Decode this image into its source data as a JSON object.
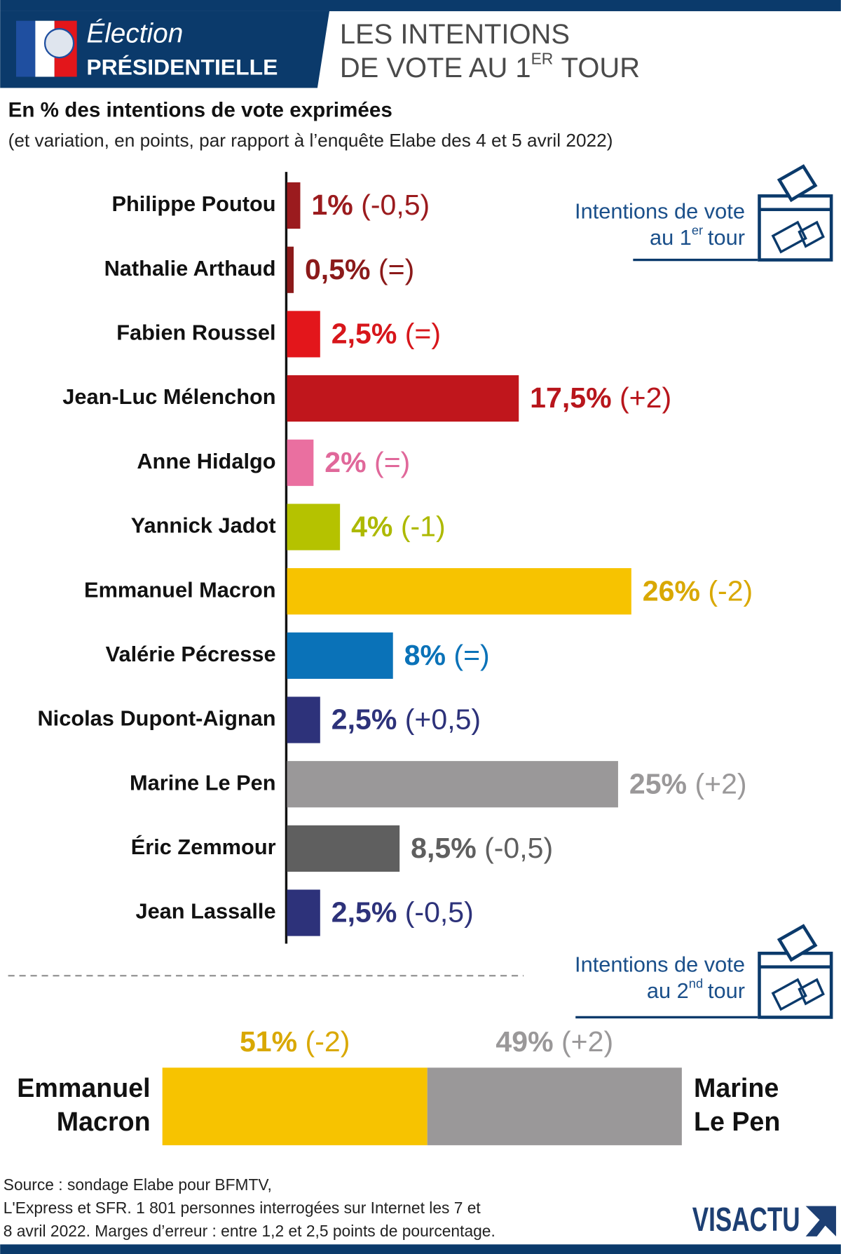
{
  "header": {
    "badge_line1": "Élection",
    "badge_line2": "PRÉSIDENTIELLE",
    "title_line1": "LES INTENTIONS",
    "title_line2": "DE VOTE AU 1",
    "title_sup": "ER",
    "title_line2_end": "TOUR"
  },
  "chart_data": [
    {
      "type": "hbar",
      "subtitle": "En % des intentions de vote exprimées",
      "note": "(et variation, en points, par rapport à l’enquête Elabe des 4 et 5 avril 2022)",
      "legend": {
        "line1": "Intentions de vote",
        "line2": "au 1",
        "sup": "er",
        "line2_end": "tour"
      },
      "categories": [
        "Philippe Poutou",
        "Nathalie Arthaud",
        "Fabien Roussel",
        "Jean-Luc Mélenchon",
        "Anne Hidalgo",
        "Yannick Jadot",
        "Emmanuel Macron",
        "Valérie Pécresse",
        "Nicolas Dupont-Aignan",
        "Marine Le Pen",
        "Éric Zemmour",
        "Jean Lassalle"
      ],
      "values": [
        1,
        0.5,
        2.5,
        17.5,
        2,
        4,
        26,
        8,
        2.5,
        25,
        8.5,
        2.5
      ],
      "value_labels": [
        "1%",
        "0,5%",
        "2,5%",
        "17,5%",
        "2%",
        "4%",
        "26%",
        "8%",
        "2,5%",
        "25%",
        "8,5%",
        "2,5%"
      ],
      "change_labels": [
        "(-0,5)",
        "(=)",
        "(=)",
        "(+2)",
        "(=)",
        "(-1)",
        "(-2)",
        "(=)",
        "(+0,5)",
        "(+2)",
        "(-0,5)",
        "(-0,5)"
      ],
      "colors": [
        "#9b1b1e",
        "#8b1a1a",
        "#e3161b",
        "#c0161c",
        "#ea6fa0",
        "#b5c200",
        "#f7c300",
        "#0a72b8",
        "#2d327a",
        "#9a9899",
        "#5f5f5f",
        "#2d327a"
      ],
      "label_colors": [
        "#9b1b1e",
        "#8b1a1a",
        "#d7161b",
        "#b8161c",
        "#e0689a",
        "#adb900",
        "#d9a800",
        "#0a72b8",
        "#2d327a",
        "#9a9899",
        "#5f5f5f",
        "#2d327a"
      ]
    },
    {
      "type": "stacked",
      "legend": {
        "line1": "Intentions de vote",
        "line2": "au 2",
        "sup": "nd",
        "line2_end": "tour"
      },
      "categories": [
        [
          "Emmanuel",
          "Macron"
        ],
        [
          "Marine",
          "Le Pen"
        ]
      ],
      "values": [
        51,
        49
      ],
      "value_labels": [
        "51%",
        "49%"
      ],
      "change_labels": [
        "(-2)",
        "(+2)"
      ],
      "colors": [
        "#f7c300",
        "#9a9899"
      ],
      "label_colors": [
        "#d9a800",
        "#9a9899"
      ]
    }
  ],
  "footer": {
    "source": [
      "Source : sondage Elabe pour BFMTV,",
      "L'Express et SFR. 1 801 personnes interrogées sur Internet les 7 et",
      "8 avril 2022. Marges d’erreur : entre 1,2 et 2,5 points de pourcentage."
    ],
    "logo": "VISACTU"
  }
}
